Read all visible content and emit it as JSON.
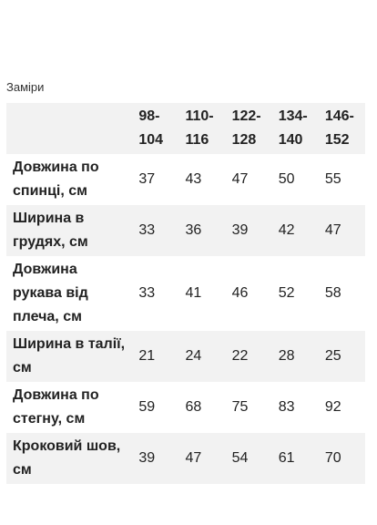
{
  "caption": "Заміри",
  "table": {
    "headers": [
      "",
      "98-104",
      "110-116",
      "122-128",
      "134-140",
      "146-152"
    ],
    "rows": [
      {
        "label": "Довжина по спинці, см",
        "values": [
          "37",
          "43",
          "47",
          "50",
          "55"
        ]
      },
      {
        "label": "Ширина в грудях, см",
        "values": [
          "33",
          "36",
          "39",
          "42",
          "47"
        ]
      },
      {
        "label": "Довжина рукава від плеча, см",
        "values": [
          "33",
          "41",
          "46",
          "52",
          "58"
        ]
      },
      {
        "label": "Ширина в талії, см",
        "values": [
          "21",
          "24",
          "22",
          "28",
          "25"
        ]
      },
      {
        "label": "Довжина по стегну, см",
        "values": [
          "59",
          "68",
          "75",
          "83",
          "92"
        ]
      },
      {
        "label": "Кроковий шов, см",
        "values": [
          "39",
          "47",
          "54",
          "61",
          "70"
        ]
      }
    ]
  }
}
